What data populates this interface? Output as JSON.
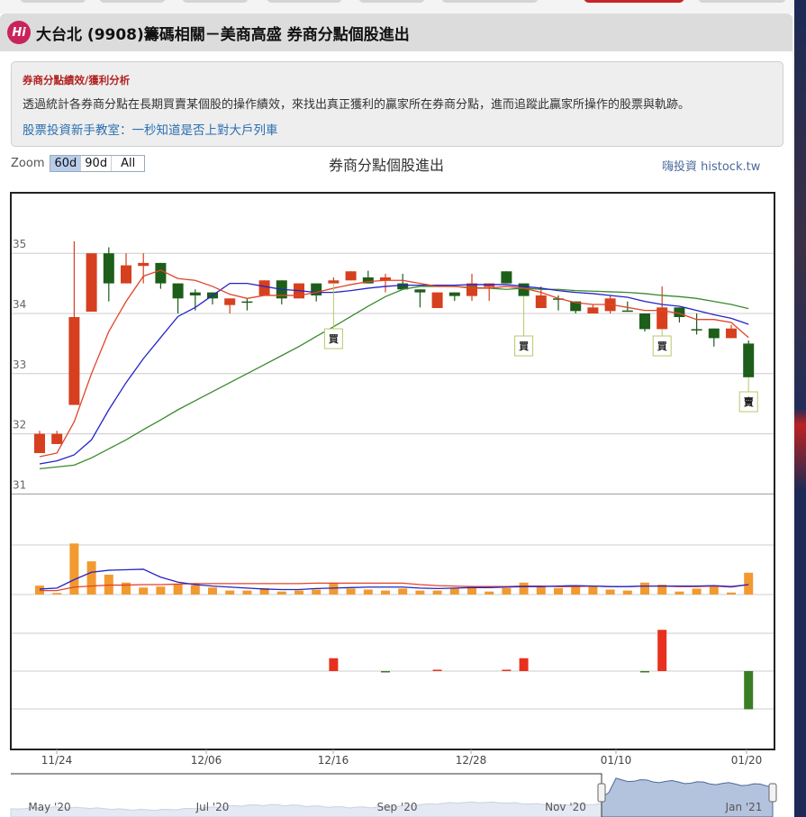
{
  "page": {
    "title": "大台北 (9908)籌碼相關－美商高盛 券商分點個股進出",
    "logo": "Hi"
  },
  "info": {
    "heading": "券商分點績效/獲利分析",
    "description": "透過統計各券商分點在長期買賣某個股的操作績效，來找出真正獲利的贏家所在券商分點，進而追蹤此贏家所操作的股票與軌跡。",
    "link": "股票投資新手教室：一秒知道是否上對大戶列車"
  },
  "zoom": {
    "label": "Zoom",
    "options": [
      "60d",
      "90d",
      "All"
    ],
    "selected": "60d"
  },
  "credit": "嗨投資 histock.tw",
  "colors": {
    "up": "#d6401e",
    "down": "#1d5e1a",
    "ma_fast": "#e0442a",
    "ma_mid": "#2424c8",
    "ma_slow": "#3a8a2e",
    "volume": "#f29a30",
    "net_buy": "#e8301e",
    "net_sell": "#3a7d24",
    "accent": "#c8242a"
  },
  "chart_data": {
    "type": "candlestick",
    "title": "券商分點個股進出",
    "ylim": [
      31,
      35.3
    ],
    "y_ticks": [
      31,
      32,
      33,
      34,
      35
    ],
    "x_tick_labels": [
      "11/24",
      "12/06",
      "12/16",
      "12/28",
      "01/10",
      "01/20"
    ],
    "ohlc": [
      [
        31.68,
        32.05,
        31.68,
        32.0
      ],
      [
        31.83,
        32.05,
        31.83,
        32.0
      ],
      [
        32.48,
        35.2,
        32.48,
        33.94
      ],
      [
        34.03,
        35.0,
        34.03,
        35.0
      ],
      [
        35.0,
        35.1,
        34.2,
        34.5
      ],
      [
        34.5,
        35.0,
        34.5,
        34.8
      ],
      [
        34.79,
        35.0,
        34.5,
        34.84
      ],
      [
        34.84,
        34.84,
        34.41,
        34.5
      ],
      [
        34.5,
        34.5,
        34.0,
        34.25
      ],
      [
        34.35,
        34.4,
        34.05,
        34.3
      ],
      [
        34.35,
        34.35,
        34.15,
        34.25
      ],
      [
        34.14,
        34.25,
        34.0,
        34.25
      ],
      [
        34.2,
        34.25,
        34.05,
        34.2
      ],
      [
        34.3,
        34.55,
        34.3,
        34.55
      ],
      [
        34.55,
        34.55,
        34.15,
        34.25
      ],
      [
        34.25,
        34.5,
        34.25,
        34.5
      ],
      [
        34.5,
        34.5,
        34.2,
        34.3
      ],
      [
        34.5,
        34.6,
        34.5,
        34.55
      ],
      [
        34.55,
        34.7,
        34.55,
        34.7
      ],
      [
        34.6,
        34.71,
        34.5,
        34.5
      ],
      [
        34.55,
        34.66,
        34.35,
        34.6
      ],
      [
        34.5,
        34.66,
        34.4,
        34.4
      ],
      [
        34.4,
        34.4,
        34.1,
        34.35
      ],
      [
        34.09,
        34.35,
        34.09,
        34.35
      ],
      [
        34.35,
        34.35,
        34.21,
        34.29
      ],
      [
        34.29,
        34.66,
        34.21,
        34.5
      ],
      [
        34.44,
        34.5,
        34.21,
        34.5
      ],
      [
        34.7,
        34.7,
        34.5,
        34.5
      ],
      [
        34.5,
        34.5,
        34.29,
        34.29
      ],
      [
        34.09,
        34.45,
        34.09,
        34.3
      ],
      [
        34.25,
        34.3,
        34.05,
        34.25
      ],
      [
        34.2,
        34.2,
        34.0,
        34.04
      ],
      [
        34.0,
        34.15,
        34.0,
        34.1
      ],
      [
        34.04,
        34.3,
        34.0,
        34.25
      ],
      [
        34.05,
        34.2,
        34.05,
        34.05
      ],
      [
        34.0,
        34.0,
        33.7,
        33.74
      ],
      [
        33.74,
        34.45,
        33.74,
        34.1
      ],
      [
        34.1,
        34.1,
        33.85,
        33.94
      ],
      [
        33.74,
        34.0,
        33.65,
        33.74
      ],
      [
        33.75,
        33.75,
        33.45,
        33.59
      ],
      [
        33.59,
        33.81,
        33.59,
        33.75
      ],
      [
        33.5,
        33.55,
        32.94,
        32.94
      ]
    ],
    "ma_fast": [
      31.62,
      31.68,
      32.2,
      33.0,
      33.7,
      34.2,
      34.62,
      34.72,
      34.58,
      34.55,
      34.45,
      34.32,
      34.25,
      34.3,
      34.3,
      34.3,
      34.35,
      34.42,
      34.48,
      34.53,
      34.55,
      34.55,
      34.5,
      34.45,
      34.45,
      34.42,
      34.42,
      34.45,
      34.42,
      34.35,
      34.25,
      34.18,
      34.15,
      34.15,
      34.1,
      34.05,
      34.05,
      34.0,
      33.9,
      33.9,
      33.85,
      33.6
    ],
    "ma_mid": [
      31.5,
      31.55,
      31.65,
      31.9,
      32.4,
      32.85,
      33.25,
      33.6,
      33.95,
      34.1,
      34.3,
      34.5,
      34.5,
      34.45,
      34.4,
      34.38,
      34.35,
      34.35,
      34.38,
      34.42,
      34.45,
      34.47,
      34.47,
      34.47,
      34.47,
      34.48,
      34.48,
      34.48,
      34.45,
      34.42,
      34.38,
      34.35,
      34.33,
      34.3,
      34.27,
      34.2,
      34.15,
      34.12,
      34.05,
      33.98,
      33.92,
      33.82
    ],
    "ma_slow": [
      31.42,
      31.45,
      31.48,
      31.6,
      31.75,
      31.9,
      32.07,
      32.23,
      32.4,
      32.55,
      32.7,
      32.85,
      33.0,
      33.15,
      33.3,
      33.45,
      33.62,
      33.78,
      33.95,
      34.12,
      34.28,
      34.4,
      34.45,
      34.45,
      34.45,
      34.43,
      34.42,
      34.4,
      34.42,
      34.4,
      34.4,
      34.38,
      34.37,
      34.36,
      34.35,
      34.33,
      34.3,
      34.28,
      34.25,
      34.2,
      34.15,
      34.08
    ],
    "volume": [
      0.18,
      0.03,
      1.03,
      0.67,
      0.4,
      0.24,
      0.14,
      0.16,
      0.2,
      0.19,
      0.14,
      0.08,
      0.08,
      0.13,
      0.06,
      0.08,
      0.1,
      0.24,
      0.12,
      0.1,
      0.08,
      0.12,
      0.08,
      0.08,
      0.12,
      0.16,
      0.06,
      0.13,
      0.24,
      0.16,
      0.13,
      0.16,
      0.16,
      0.1,
      0.08,
      0.24,
      0.2,
      0.06,
      0.12,
      0.18,
      0.04,
      0.44
    ],
    "volume_ma_short": [
      0.11,
      0.13,
      0.3,
      0.45,
      0.49,
      0.5,
      0.51,
      0.35,
      0.25,
      0.2,
      0.17,
      0.15,
      0.13,
      0.11,
      0.1,
      0.1,
      0.12,
      0.13,
      0.14,
      0.15,
      0.15,
      0.15,
      0.13,
      0.12,
      0.13,
      0.14,
      0.14,
      0.15,
      0.16,
      0.16,
      0.17,
      0.18,
      0.17,
      0.16,
      0.16,
      0.17,
      0.17,
      0.17,
      0.17,
      0.18,
      0.16,
      0.2
    ],
    "volume_ma_long": [
      0.08,
      0.08,
      0.15,
      0.17,
      0.19,
      0.19,
      0.2,
      0.2,
      0.21,
      0.22,
      0.22,
      0.22,
      0.22,
      0.22,
      0.22,
      0.22,
      0.23,
      0.23,
      0.23,
      0.23,
      0.23,
      0.23,
      0.2,
      0.18,
      0.17,
      0.16,
      0.16,
      0.16,
      0.17,
      0.17,
      0.16,
      0.16,
      0.17,
      0.16,
      0.16,
      0.17,
      0.17,
      0.16,
      0.16,
      0.17,
      0.15,
      0.2
    ],
    "broker_net": [
      0,
      0,
      0,
      0,
      0,
      0,
      0,
      0,
      0,
      0,
      0,
      0,
      0,
      0,
      0,
      0,
      0,
      0.34,
      0,
      0,
      -0.02,
      0,
      0,
      0.02,
      0,
      0,
      0,
      0.02,
      0.34,
      0,
      0,
      0,
      0,
      0,
      0,
      -0.02,
      1.09,
      0,
      0,
      0,
      0,
      -1.01
    ],
    "markers": [
      {
        "index": 17,
        "label": "買"
      },
      {
        "index": 28,
        "label": "買"
      },
      {
        "index": 36,
        "label": "買"
      },
      {
        "index": 41,
        "label": "賣"
      }
    ],
    "navigator_labels": [
      "May '20",
      "Jul '20",
      "Sep '20",
      "Nov '20",
      "Jan '21"
    ]
  }
}
